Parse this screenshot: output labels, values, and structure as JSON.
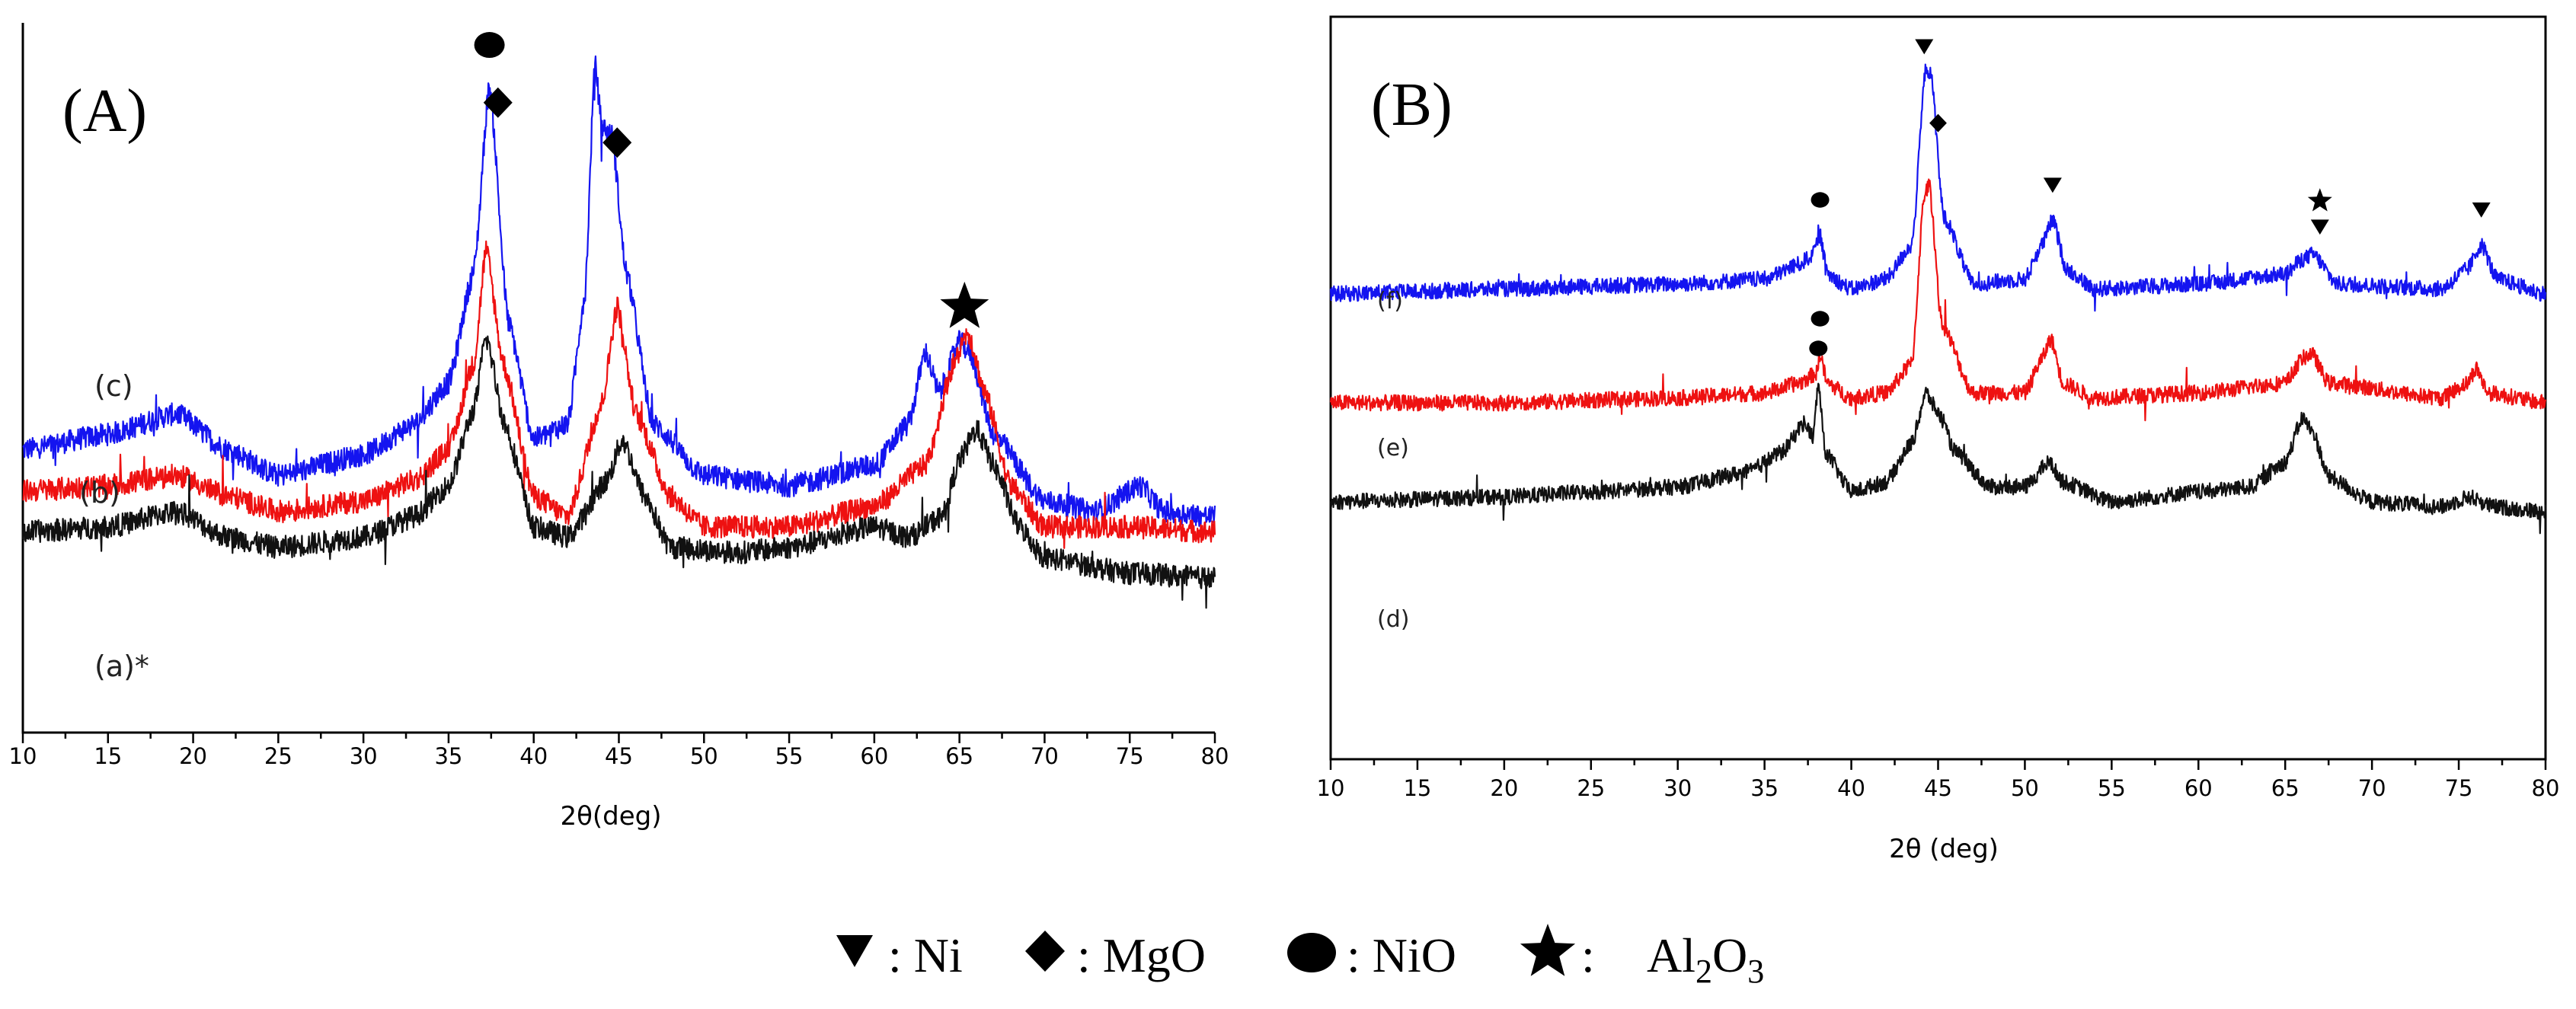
{
  "legend": {
    "items": [
      {
        "symbol": "triangle-down",
        "label": ": Ni"
      },
      {
        "symbol": "diamond",
        "label": ": MgO"
      },
      {
        "symbol": "circle",
        "label": ": NiO"
      },
      {
        "symbol": "star",
        "label": ": ",
        "formula": [
          "Al",
          "2",
          "O",
          "3"
        ]
      }
    ]
  },
  "chart_data": [
    {
      "type": "line",
      "panel_label": "(A)",
      "xlabel": "2θ(deg)",
      "ylabel": "",
      "xlim": [
        10,
        80
      ],
      "x_ticks": [
        10,
        15,
        20,
        25,
        30,
        35,
        40,
        45,
        50,
        55,
        60,
        65,
        70,
        75,
        80
      ],
      "y_ticks_shown": false,
      "series": [
        {
          "name": "(c)",
          "color": "#1414f0",
          "curve_label": "(c)",
          "points": [
            [
              10,
              0.25
            ],
            [
              15,
              0.28
            ],
            [
              19,
              0.32
            ],
            [
              22,
              0.25
            ],
            [
              25,
              0.2
            ],
            [
              30,
              0.24
            ],
            [
              33,
              0.3
            ],
            [
              35,
              0.38
            ],
            [
              36.5,
              0.6
            ],
            [
              37.4,
              0.96
            ],
            [
              38.5,
              0.5
            ],
            [
              40,
              0.27
            ],
            [
              42,
              0.3
            ],
            [
              43,
              0.55
            ],
            [
              43.6,
              1.0
            ],
            [
              44,
              0.88
            ],
            [
              44.6,
              0.86
            ],
            [
              45.4,
              0.6
            ],
            [
              47,
              0.3
            ],
            [
              50,
              0.2
            ],
            [
              55,
              0.18
            ],
            [
              60,
              0.22
            ],
            [
              62,
              0.3
            ],
            [
              63,
              0.44
            ],
            [
              63.8,
              0.36
            ],
            [
              65,
              0.46
            ],
            [
              65.6,
              0.44
            ],
            [
              67,
              0.28
            ],
            [
              70,
              0.15
            ],
            [
              73,
              0.13
            ],
            [
              75.6,
              0.18
            ],
            [
              77,
              0.13
            ],
            [
              80,
              0.12
            ]
          ]
        },
        {
          "name": "(b)",
          "color": "#ee1111",
          "curve_label": "(b)",
          "points": [
            [
              10,
              0.17
            ],
            [
              15,
              0.18
            ],
            [
              19,
              0.2
            ],
            [
              22,
              0.16
            ],
            [
              25,
              0.13
            ],
            [
              30,
              0.15
            ],
            [
              33,
              0.19
            ],
            [
              35,
              0.25
            ],
            [
              36.5,
              0.42
            ],
            [
              37.2,
              0.64
            ],
            [
              38.2,
              0.42
            ],
            [
              40,
              0.16
            ],
            [
              42,
              0.12
            ],
            [
              44,
              0.34
            ],
            [
              44.9,
              0.53
            ],
            [
              46,
              0.32
            ],
            [
              48,
              0.16
            ],
            [
              50,
              0.1
            ],
            [
              55,
              0.1
            ],
            [
              60,
              0.14
            ],
            [
              63,
              0.22
            ],
            [
              64.7,
              0.42
            ],
            [
              65.5,
              0.48
            ],
            [
              66.5,
              0.36
            ],
            [
              68,
              0.18
            ],
            [
              70,
              0.1
            ],
            [
              75,
              0.1
            ],
            [
              80,
              0.09
            ]
          ]
        },
        {
          "name": "(a)",
          "color": "#111111",
          "curve_label": "(a)*",
          "points": [
            [
              10,
              0.09
            ],
            [
              15,
              0.1
            ],
            [
              19,
              0.13
            ],
            [
              22,
              0.08
            ],
            [
              25,
              0.06
            ],
            [
              30,
              0.08
            ],
            [
              33,
              0.12
            ],
            [
              35,
              0.18
            ],
            [
              36.5,
              0.33
            ],
            [
              37.2,
              0.47
            ],
            [
              38.3,
              0.3
            ],
            [
              40,
              0.1
            ],
            [
              42,
              0.08
            ],
            [
              44.3,
              0.19
            ],
            [
              45.2,
              0.27
            ],
            [
              46.5,
              0.16
            ],
            [
              48,
              0.06
            ],
            [
              52,
              0.05
            ],
            [
              55,
              0.06
            ],
            [
              60,
              0.1
            ],
            [
              62,
              0.08
            ],
            [
              64,
              0.12
            ],
            [
              65,
              0.23
            ],
            [
              66,
              0.29
            ],
            [
              67,
              0.22
            ],
            [
              68.5,
              0.1
            ],
            [
              70,
              0.04
            ],
            [
              75,
              0.01
            ],
            [
              80,
              0.0
            ]
          ]
        }
      ],
      "annotations": [
        {
          "symbol": "circle",
          "x": 37.4,
          "stack": 0
        },
        {
          "symbol": "diamond",
          "x": 37.9,
          "stack": 1
        },
        {
          "symbol": "circle",
          "x": 43.6,
          "stack": 1
        },
        {
          "symbol": "diamond",
          "x": 44.9,
          "stack": 0
        },
        {
          "symbol": "star",
          "x": 65.3,
          "stack": 0
        }
      ]
    },
    {
      "type": "line",
      "panel_label": "(B)",
      "xlabel": "2θ (deg)",
      "ylabel": "",
      "xlim": [
        10,
        80
      ],
      "x_ticks": [
        10,
        15,
        20,
        25,
        30,
        35,
        40,
        45,
        50,
        55,
        60,
        65,
        70,
        75,
        80
      ],
      "y_ticks_shown": false,
      "series": [
        {
          "name": "(f)",
          "color": "#1414f0",
          "curve_label": "(f)",
          "points": [
            [
              10,
              0.52
            ],
            [
              20,
              0.53
            ],
            [
              30,
              0.54
            ],
            [
              35,
              0.55
            ],
            [
              37,
              0.58
            ],
            [
              37.8,
              0.6
            ],
            [
              38.2,
              0.64
            ],
            [
              38.6,
              0.56
            ],
            [
              40,
              0.53
            ],
            [
              42,
              0.55
            ],
            [
              43.5,
              0.62
            ],
            [
              44.3,
              0.98
            ],
            [
              44.6,
              0.96
            ],
            [
              45.3,
              0.68
            ],
            [
              47,
              0.54
            ],
            [
              50,
              0.55
            ],
            [
              51,
              0.62
            ],
            [
              51.6,
              0.67
            ],
            [
              52.4,
              0.57
            ],
            [
              54,
              0.53
            ],
            [
              60,
              0.54
            ],
            [
              65,
              0.56
            ],
            [
              66,
              0.59
            ],
            [
              66.6,
              0.6
            ],
            [
              68,
              0.54
            ],
            [
              74,
              0.53
            ],
            [
              75.5,
              0.57
            ],
            [
              76.3,
              0.62
            ],
            [
              77.2,
              0.55
            ],
            [
              80,
              0.52
            ]
          ]
        },
        {
          "name": "(e)",
          "color": "#ee1111",
          "curve_label": "(e)",
          "points": [
            [
              10,
              0.3
            ],
            [
              20,
              0.3
            ],
            [
              30,
              0.31
            ],
            [
              35,
              0.32
            ],
            [
              37,
              0.34
            ],
            [
              38,
              0.36
            ],
            [
              38.2,
              0.4
            ],
            [
              38.6,
              0.34
            ],
            [
              40,
              0.31
            ],
            [
              42,
              0.32
            ],
            [
              43.5,
              0.38
            ],
            [
              44.2,
              0.72
            ],
            [
              44.5,
              0.74
            ],
            [
              45.2,
              0.46
            ],
            [
              47,
              0.32
            ],
            [
              50,
              0.32
            ],
            [
              51,
              0.39
            ],
            [
              51.5,
              0.43
            ],
            [
              52.2,
              0.34
            ],
            [
              54,
              0.31
            ],
            [
              60,
              0.32
            ],
            [
              65,
              0.34
            ],
            [
              66,
              0.39
            ],
            [
              66.5,
              0.4
            ],
            [
              67.5,
              0.34
            ],
            [
              74,
              0.31
            ],
            [
              75.5,
              0.34
            ],
            [
              76,
              0.37
            ],
            [
              76.7,
              0.32
            ],
            [
              80,
              0.3
            ]
          ]
        },
        {
          "name": "(d)",
          "color": "#111111",
          "curve_label": "(d)",
          "points": [
            [
              10,
              0.1
            ],
            [
              20,
              0.11
            ],
            [
              25,
              0.12
            ],
            [
              30,
              0.13
            ],
            [
              34,
              0.16
            ],
            [
              36,
              0.2
            ],
            [
              37.3,
              0.26
            ],
            [
              37.8,
              0.23
            ],
            [
              38.1,
              0.34
            ],
            [
              38.5,
              0.2
            ],
            [
              40,
              0.12
            ],
            [
              42,
              0.14
            ],
            [
              43.5,
              0.22
            ],
            [
              44.3,
              0.32
            ],
            [
              45,
              0.28
            ],
            [
              46,
              0.2
            ],
            [
              48,
              0.13
            ],
            [
              50,
              0.13
            ],
            [
              51.4,
              0.18
            ],
            [
              52.2,
              0.14
            ],
            [
              55,
              0.1
            ],
            [
              60,
              0.12
            ],
            [
              63,
              0.13
            ],
            [
              65,
              0.18
            ],
            [
              66,
              0.27
            ],
            [
              66.6,
              0.24
            ],
            [
              67.5,
              0.15
            ],
            [
              70,
              0.1
            ],
            [
              74,
              0.09
            ],
            [
              75.6,
              0.11
            ],
            [
              77,
              0.09
            ],
            [
              80,
              0.08
            ]
          ]
        }
      ],
      "annotations": [
        {
          "symbol": "circle",
          "x": 38.2,
          "series": "(f)"
        },
        {
          "symbol": "triangle-down",
          "x": 44.2,
          "series": "(f)"
        },
        {
          "symbol": "diamond",
          "x": 45.0,
          "series": "(f)"
        },
        {
          "symbol": "triangle-down",
          "x": 51.6,
          "series": "(f)"
        },
        {
          "symbol": "star",
          "x": 67.0,
          "series": "(f)",
          "stack": 1
        },
        {
          "symbol": "triangle-down",
          "x": 67.0,
          "series": "(f)",
          "stack": 0
        },
        {
          "symbol": "triangle-down",
          "x": 76.3,
          "series": "(f)"
        },
        {
          "symbol": "circle",
          "x": 38.2,
          "series": "(e)"
        },
        {
          "symbol": "circle",
          "x": 38.1,
          "series": "(d)"
        }
      ]
    }
  ]
}
